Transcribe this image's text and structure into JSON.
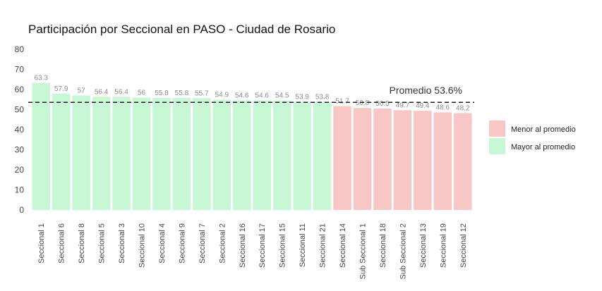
{
  "chart_data": {
    "type": "bar",
    "title": "Participación por Seccional en PASO - Ciudad de Rosario",
    "xlabel": "",
    "ylabel": "",
    "ylim": [
      0,
      80
    ],
    "yticks": [
      "0",
      "10",
      "20",
      "30",
      "40",
      "50",
      "60",
      "70",
      "80"
    ],
    "grid": false,
    "legend_position": "right",
    "categories": [
      "Seccional 1",
      "Seccional 6",
      "Seccional 8",
      "Seccional 5",
      "Seccional 3",
      "Seccional 10",
      "Seccional 4",
      "Seccional 9",
      "Seccional 7",
      "Seccional 2",
      "Seccional 16",
      "Seccional 17",
      "Seccional 15",
      "Seccional 11",
      "Seccional 21",
      "Seccional 14",
      "Sub Seccional 1",
      "Seccional 18",
      "Sub Seccional 2",
      "Seccional 13",
      "Seccional 19",
      "Seccional 12"
    ],
    "values": [
      63.3,
      57.9,
      57,
      56.4,
      56.4,
      56,
      55.8,
      55.8,
      55.7,
      54.9,
      54.6,
      54.6,
      54.5,
      53.9,
      53.8,
      51.7,
      50.8,
      50.5,
      49.7,
      49.4,
      48.6,
      48.2
    ],
    "value_labels": [
      "63.3",
      "57.9",
      "57",
      "56.4",
      "56.4",
      "56",
      "55.8",
      "55.8",
      "55.7",
      "54.9",
      "54.6",
      "54.6",
      "54.5",
      "53.9",
      "53.8",
      "51.7",
      "50.8",
      "50.5",
      "49.7",
      "49.4",
      "48.6",
      "48.2"
    ],
    "average": 53.6,
    "average_label": "Promedio 53.6%",
    "legend": [
      {
        "name": "Menor al promedio",
        "color": "#f9c6c6"
      },
      {
        "name": "Mayor al promedio",
        "color": "#c8f7d6"
      }
    ]
  }
}
